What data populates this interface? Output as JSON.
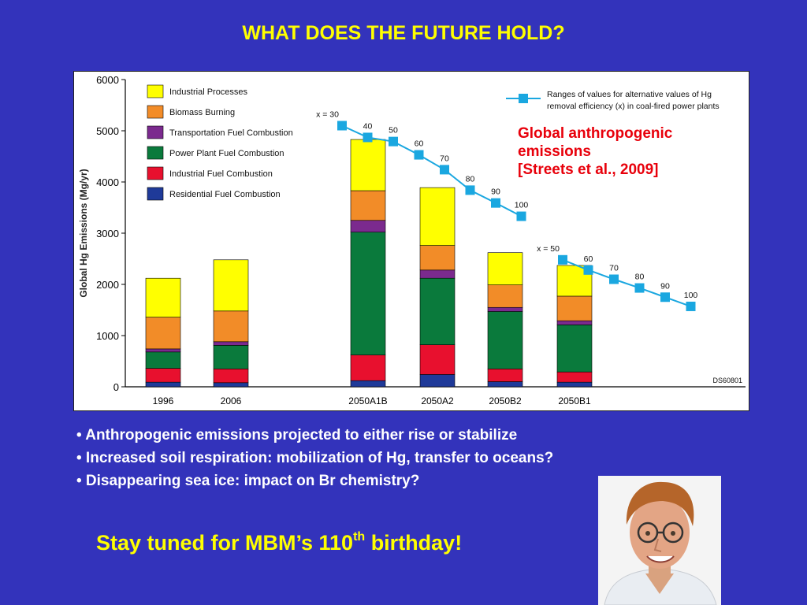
{
  "slide_title": "WHAT DOES THE FUTURE HOLD?",
  "citation_lines": [
    "Global anthropogenic",
    "emissions",
    "[Streets et al., 2009]"
  ],
  "bullets": [
    "• Anthropogenic emissions projected to either rise or stabilize",
    "• Increased soil respiration: mobilization of Hg, transfer to oceans?",
    "• Disappearing sea ice: impact on Br chemistry?"
  ],
  "stay_tuned": {
    "before": "Stay tuned for MBM’s 110",
    "sup": "th",
    "after": " birthday!"
  },
  "colors": {
    "background": "#3333bb",
    "title": "#ffff00",
    "citation": "#e8000b",
    "bullet_text": "#ffffff",
    "line_series": "#1aa7e0"
  },
  "chart_data": {
    "type": "bar",
    "stacked": true,
    "ylabel": "Global Hg Emissions (Mg/yr)",
    "ylim": [
      0,
      6000
    ],
    "yticks": [
      0,
      1000,
      2000,
      3000,
      4000,
      5000,
      6000
    ],
    "grid": false,
    "legend_position": "top-left",
    "figure_code": "DS60801",
    "categories": [
      "1996",
      "2006",
      "2050A1B",
      "2050A2",
      "2050B2",
      "2050B1"
    ],
    "series": [
      {
        "name": "Residential Fuel Combustion",
        "color": "#1f3a99",
        "values": [
          90,
          80,
          120,
          240,
          100,
          90
        ]
      },
      {
        "name": "Industrial Fuel Combustion",
        "color": "#e8102e",
        "values": [
          270,
          270,
          500,
          580,
          250,
          200
        ]
      },
      {
        "name": "Power Plant Fuel Combustion",
        "color": "#0a7a3c",
        "values": [
          320,
          460,
          2400,
          1300,
          1120,
          920
        ]
      },
      {
        "name": "Transportation Fuel Combustion",
        "color": "#7b2a8e",
        "values": [
          60,
          70,
          230,
          160,
          80,
          80
        ]
      },
      {
        "name": "Biomass Burning",
        "color": "#f28c28",
        "values": [
          620,
          600,
          580,
          480,
          440,
          480
        ]
      },
      {
        "name": "Industrial Processes",
        "color": "#ffff00",
        "values": [
          760,
          1000,
          1000,
          1130,
          630,
          600
        ]
      }
    ],
    "line_legend": [
      "Ranges of values for alternative values of Hg",
      "removal efficiency (x) in coal-fired power plants"
    ],
    "lines": [
      {
        "category": "2050A1B",
        "points": [
          {
            "x_label": "x = 30",
            "value": 5100
          },
          {
            "x_label": "40",
            "value": 4870
          },
          {
            "x_label": "50",
            "value": 4790
          },
          {
            "x_label": "60",
            "value": 4530
          },
          {
            "x_label": "70",
            "value": 4240
          },
          {
            "x_label": "80",
            "value": 3840
          },
          {
            "x_label": "90",
            "value": 3590
          },
          {
            "x_label": "100",
            "value": 3330
          }
        ]
      },
      {
        "category": "2050B1",
        "points": [
          {
            "x_label": "x = 50",
            "value": 2480
          },
          {
            "x_label": "60",
            "value": 2280
          },
          {
            "x_label": "70",
            "value": 2100
          },
          {
            "x_label": "80",
            "value": 1930
          },
          {
            "x_label": "90",
            "value": 1750
          },
          {
            "x_label": "100",
            "value": 1570
          }
        ]
      }
    ]
  }
}
